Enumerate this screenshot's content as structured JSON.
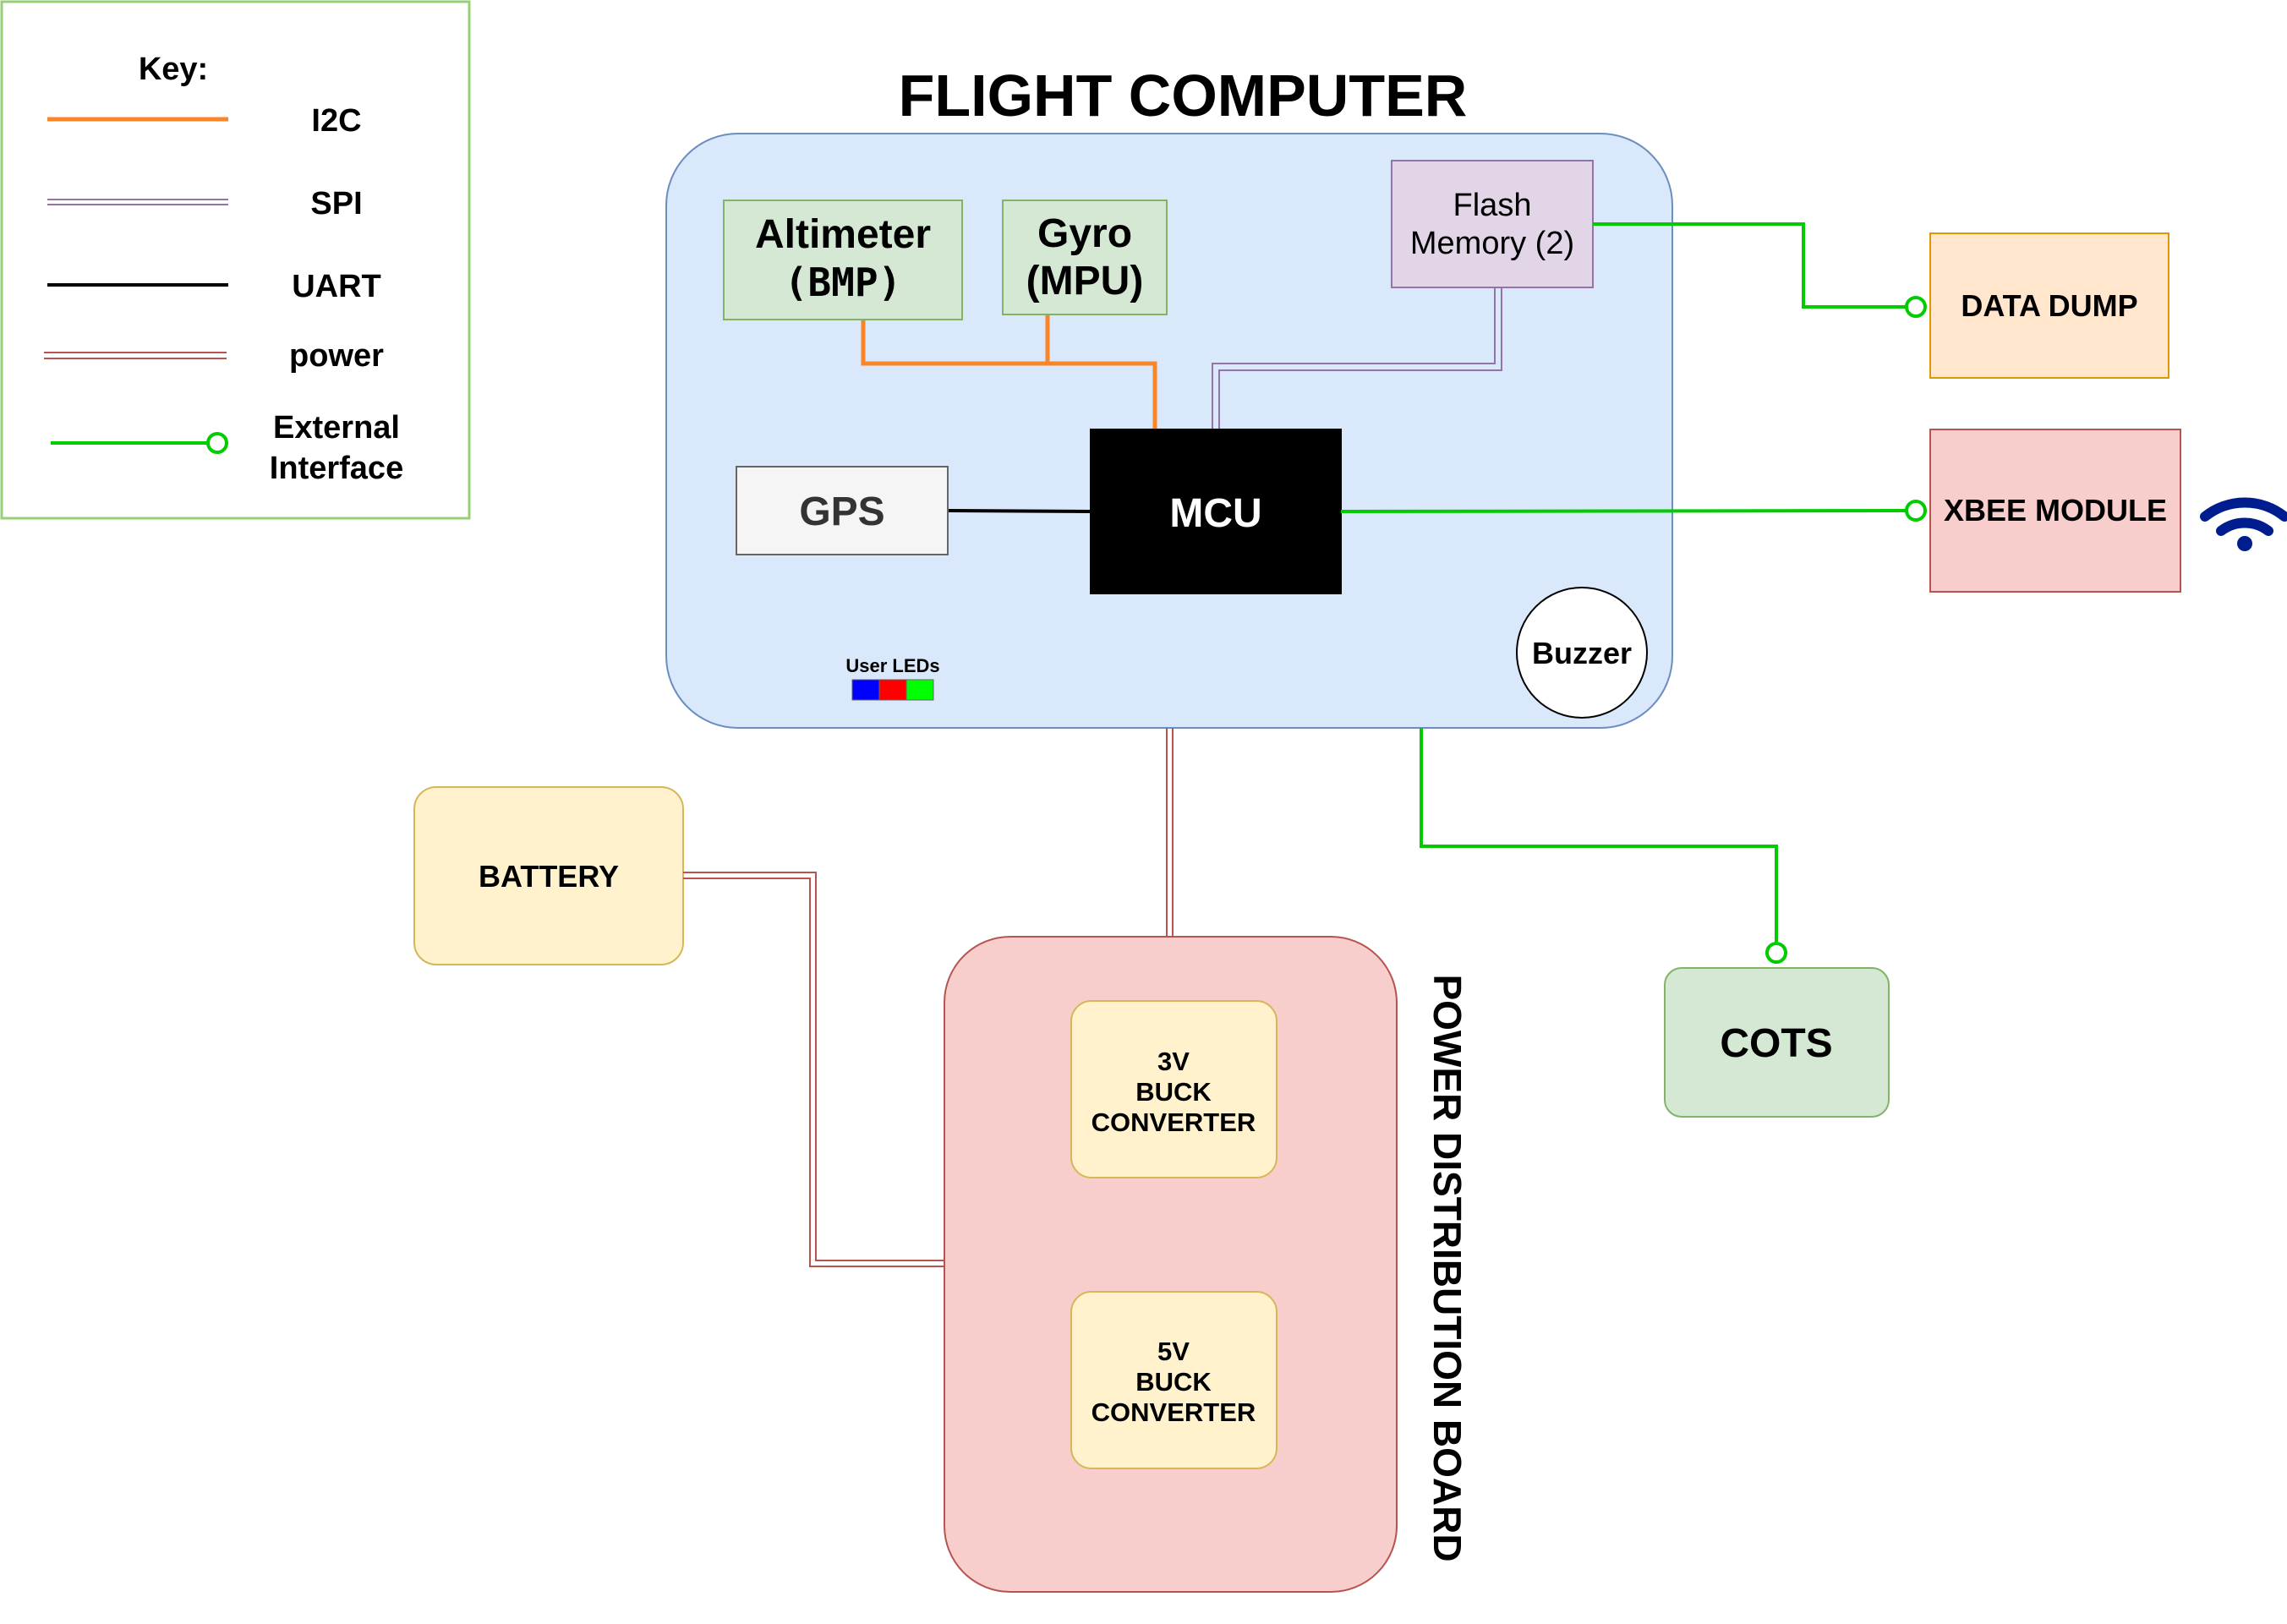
{
  "legend": {
    "title": "Key:",
    "items": [
      {
        "label": "I2C",
        "color": "#fa8527"
      },
      {
        "label": "SPI",
        "color": "#9673a6"
      },
      {
        "label": "UART",
        "color": "#000000"
      },
      {
        "label": "power",
        "color": "#b85450"
      },
      {
        "label_line1": "External",
        "label_line2": "Interface",
        "color": "#00cc00"
      }
    ]
  },
  "flight_computer": {
    "title": "FLIGHT COMPUTER",
    "altimeter": {
      "line1": "Altimeter",
      "line2": "(BMP)"
    },
    "gyro": {
      "line1": "Gyro",
      "line2": "(MPU)"
    },
    "flash": {
      "line1": "Flash",
      "line2": "Memory (2)"
    },
    "gps": "GPS",
    "mcu": "MCU",
    "buzzer": "Buzzer",
    "user_leds": {
      "label": "User LEDs",
      "colors": [
        "#0000ff",
        "#ff0000",
        "#00ff00"
      ]
    }
  },
  "external": {
    "data_dump": "DATA DUMP",
    "xbee": "XBEE MODULE",
    "wifi_icon": "wifi-icon",
    "cots": "COTS",
    "battery": "BATTERY"
  },
  "power_board": {
    "title": "POWER DISTRIBUTION BOARD",
    "buck3": {
      "line1": "3V",
      "line2": "BUCK",
      "line3": "CONVERTER"
    },
    "buck5": {
      "line1": "5V",
      "line2": "BUCK",
      "line3": "CONVERTER"
    }
  },
  "colors": {
    "fc_fill": "#dae8fc",
    "fc_stroke": "#6c8ebf",
    "green_fill": "#d5e8d4",
    "green_stroke": "#82b366",
    "purple_fill": "#e1d5e7",
    "purple_stroke": "#9673a6",
    "orange_fill": "#ffe6cc",
    "orange_stroke": "#d79b00",
    "red_fill": "#f8cecc",
    "red_stroke": "#b85450",
    "yellow_fill": "#fff2cc",
    "yellow_stroke": "#d6b656",
    "gray_fill": "#f5f5f5",
    "gray_stroke": "#666666"
  }
}
